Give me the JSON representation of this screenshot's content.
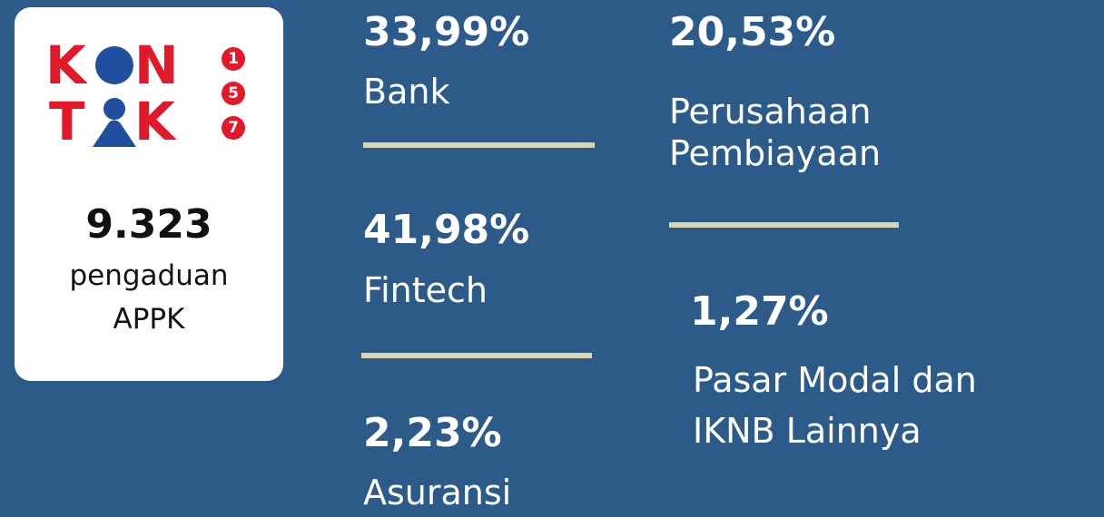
{
  "logo": {
    "row1": [
      "K",
      "N"
    ],
    "row2": [
      "T",
      "K"
    ],
    "digits": [
      "1",
      "5",
      "7"
    ]
  },
  "total": {
    "value": "9.323",
    "label_lines": [
      "pengaduan",
      "APPK"
    ]
  },
  "stats": [
    {
      "value": "33,99%",
      "label_lines": [
        "Bank"
      ]
    },
    {
      "value": "41,98%",
      "label_lines": [
        "Fintech"
      ]
    },
    {
      "value": "2,23%",
      "label_lines": [
        "Asuransi"
      ]
    },
    {
      "value": "20,53%",
      "label_lines": [
        "Perusahaan",
        "Pembiayaan"
      ]
    },
    {
      "value": "1,27%",
      "label_lines": [
        "Pasar Modal dan",
        "IKNB Lainnya"
      ]
    }
  ]
}
